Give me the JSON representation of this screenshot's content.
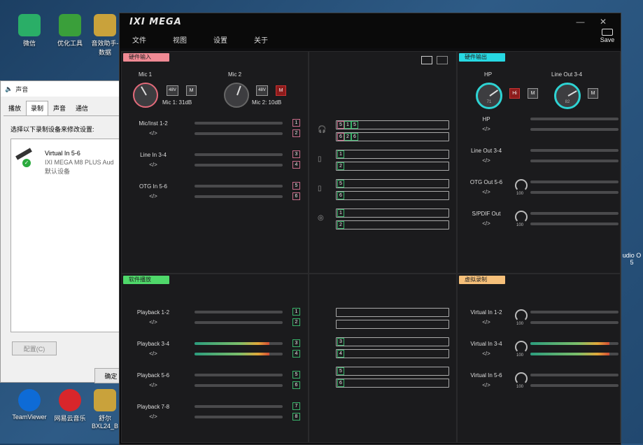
{
  "desktop": {
    "icons": [
      {
        "label": "微信",
        "color": "#2aae67"
      },
      {
        "label": "优化工具",
        "color": "#3a9f3a"
      },
      {
        "label": "音效助手-数据",
        "color": "#c9a23b"
      },
      {
        "label": "TeamViewer",
        "color": "#0e6bd6"
      },
      {
        "label": "网易云音乐",
        "color": "#d8262b"
      },
      {
        "label": "舒尔BXL24_B",
        "color": "#c9a23b"
      }
    ],
    "right_label": "udio O",
    "right_label_2": "5"
  },
  "sound_dialog": {
    "title": "声音",
    "tabs": [
      "播放",
      "录制",
      "声音",
      "通信"
    ],
    "active_tab": "录制",
    "prompt": "选择以下录制设备来修改设置:",
    "device": {
      "name": "Virtual In 5-6",
      "model": "IXI MEGA M8 PLUS Aud",
      "status": "默认设备"
    },
    "configure_label": "配置(C)",
    "ok_label": "确定"
  },
  "app": {
    "logo": "IXI MEGA",
    "menu": [
      "文件",
      "视图",
      "设置",
      "关于"
    ],
    "save_label": "Save",
    "hw_input": {
      "title": "硬件输入",
      "title_color": "#f08a94",
      "mic1": {
        "label": "Mic 1",
        "phantom": "48V",
        "mute": "M",
        "gain": "Mic 1: 31dB"
      },
      "mic2": {
        "label": "Mic 2",
        "phantom": "48V",
        "mute": "M",
        "gain": "Mic 2: 10dB"
      },
      "channels": [
        {
          "name": "Mic/Inst 1-2",
          "link": "</>",
          "nums": [
            "1",
            "2"
          ],
          "levels": [
            0,
            0
          ]
        },
        {
          "name": "Line In 3-4",
          "link": "</>",
          "nums": [
            "3",
            "4"
          ],
          "levels": [
            0,
            0
          ]
        },
        {
          "name": "OTG In 5-6",
          "link": "</>",
          "nums": [
            "5",
            "6"
          ],
          "levels": [
            0,
            0
          ]
        }
      ]
    },
    "hw_output": {
      "title": "硬件输出",
      "title_color": "#27d9e3",
      "hp": {
        "label": "HP",
        "value": "71",
        "hi": "Hi",
        "mute": "M"
      },
      "line34": {
        "label": "Line Out 3-4",
        "value": "82",
        "mute": "M"
      },
      "channels": [
        {
          "name": "HP",
          "link": "</>",
          "knob": "",
          "levels": [
            0,
            0
          ]
        },
        {
          "name": "Line Out 3-4",
          "link": "</>",
          "knob": "",
          "levels": [
            0,
            0
          ]
        },
        {
          "name": "OTG Out 5-6",
          "link": "</>",
          "knob": "100",
          "levels": [
            0,
            0
          ]
        },
        {
          "name": "S/PDIF Out",
          "link": "</>",
          "knob": "100",
          "levels": [
            0,
            0
          ]
        }
      ]
    },
    "sw_playback": {
      "title": "软件播放",
      "title_color": "#4fd86a",
      "channels": [
        {
          "name": "Playback 1-2",
          "link": "</>",
          "nums": [
            "1",
            "2"
          ],
          "levels": [
            0,
            0
          ]
        },
        {
          "name": "Playback 3-4",
          "link": "</>",
          "nums": [
            "3",
            "4"
          ],
          "levels": [
            0.85,
            0.85
          ]
        },
        {
          "name": "Playback 5-6",
          "link": "</>",
          "nums": [
            "5",
            "6"
          ],
          "levels": [
            0,
            0
          ]
        },
        {
          "name": "Playback 7-8",
          "link": "</>",
          "nums": [
            "7",
            "8"
          ],
          "levels": [
            0,
            0
          ]
        }
      ]
    },
    "virtual_rec": {
      "title": "虚拟录制",
      "title_color": "#f6c07a",
      "channels": [
        {
          "name": "Virtual In 1-2",
          "link": "</>",
          "knob": "100",
          "levels": [
            0,
            0
          ]
        },
        {
          "name": "Virtual In 3-4",
          "link": "</>",
          "knob": "100",
          "levels": [
            0.9,
            0.9
          ]
        },
        {
          "name": "Virtual In 5-6",
          "link": "</>",
          "knob": "100",
          "levels": [
            0,
            0
          ]
        }
      ]
    },
    "routing_top": [
      {
        "icon": "headphones-icon",
        "rows": [
          [
            "5",
            "1",
            "5"
          ],
          [
            "6",
            "2",
            "6"
          ]
        ]
      },
      {
        "icon": "speaker-icon",
        "rows": [
          [
            "1"
          ],
          [
            "2"
          ]
        ]
      },
      {
        "icon": "phone-icon",
        "rows": [
          [
            "5"
          ],
          [
            "6"
          ]
        ]
      },
      {
        "icon": "broadcast-icon",
        "rows": [
          [
            "1"
          ],
          [
            "2"
          ]
        ]
      }
    ],
    "routing_bottom": [
      {
        "rows": [
          [],
          []
        ]
      },
      {
        "rows": [
          [
            "3"
          ],
          [
            "4"
          ]
        ]
      },
      {
        "rows": [
          [
            "5"
          ],
          [
            "6"
          ]
        ]
      }
    ]
  }
}
